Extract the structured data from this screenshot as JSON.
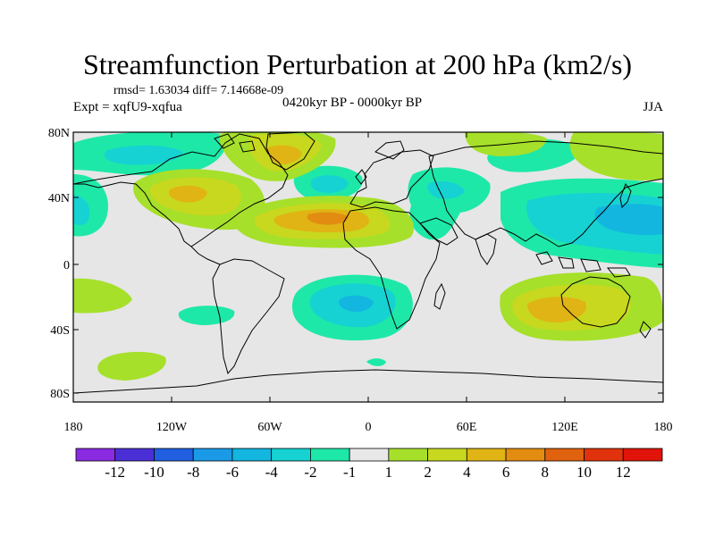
{
  "title": "Streamfunction Perturbation at 200 hPa (km2/s)",
  "stats_text": "rmsd= 1.63034 diff= 7.14668e-09",
  "experiment_label": "Expt = xqfU9-xqfua",
  "period_label": "0420kyr BP - 0000kyr BP",
  "season_label": "JJA",
  "map": {
    "lat_ticks": [
      "80N",
      "40N",
      "0",
      "40S",
      "80S"
    ],
    "lon_ticks": [
      "180",
      "120W",
      "60W",
      "0",
      "60E",
      "120E",
      "180"
    ]
  },
  "colorbar": {
    "labels": [
      "-12",
      "-10",
      "-8",
      "-6",
      "-4",
      "-2",
      "-1",
      "1",
      "2",
      "4",
      "6",
      "8",
      "10",
      "12"
    ],
    "colors": [
      "#8a2be2",
      "#4b2fd6",
      "#1f5fe0",
      "#1a9ae6",
      "#12b6df",
      "#16d2d2",
      "#1ee8a8",
      "#e8e8e8",
      "#a6e02a",
      "#c8d81e",
      "#e0b414",
      "#e28c12",
      "#e0620e",
      "#e0320c",
      "#e0140a"
    ]
  },
  "colors": {
    "neutral": "#e6e6e6",
    "coast": "#000000"
  }
}
